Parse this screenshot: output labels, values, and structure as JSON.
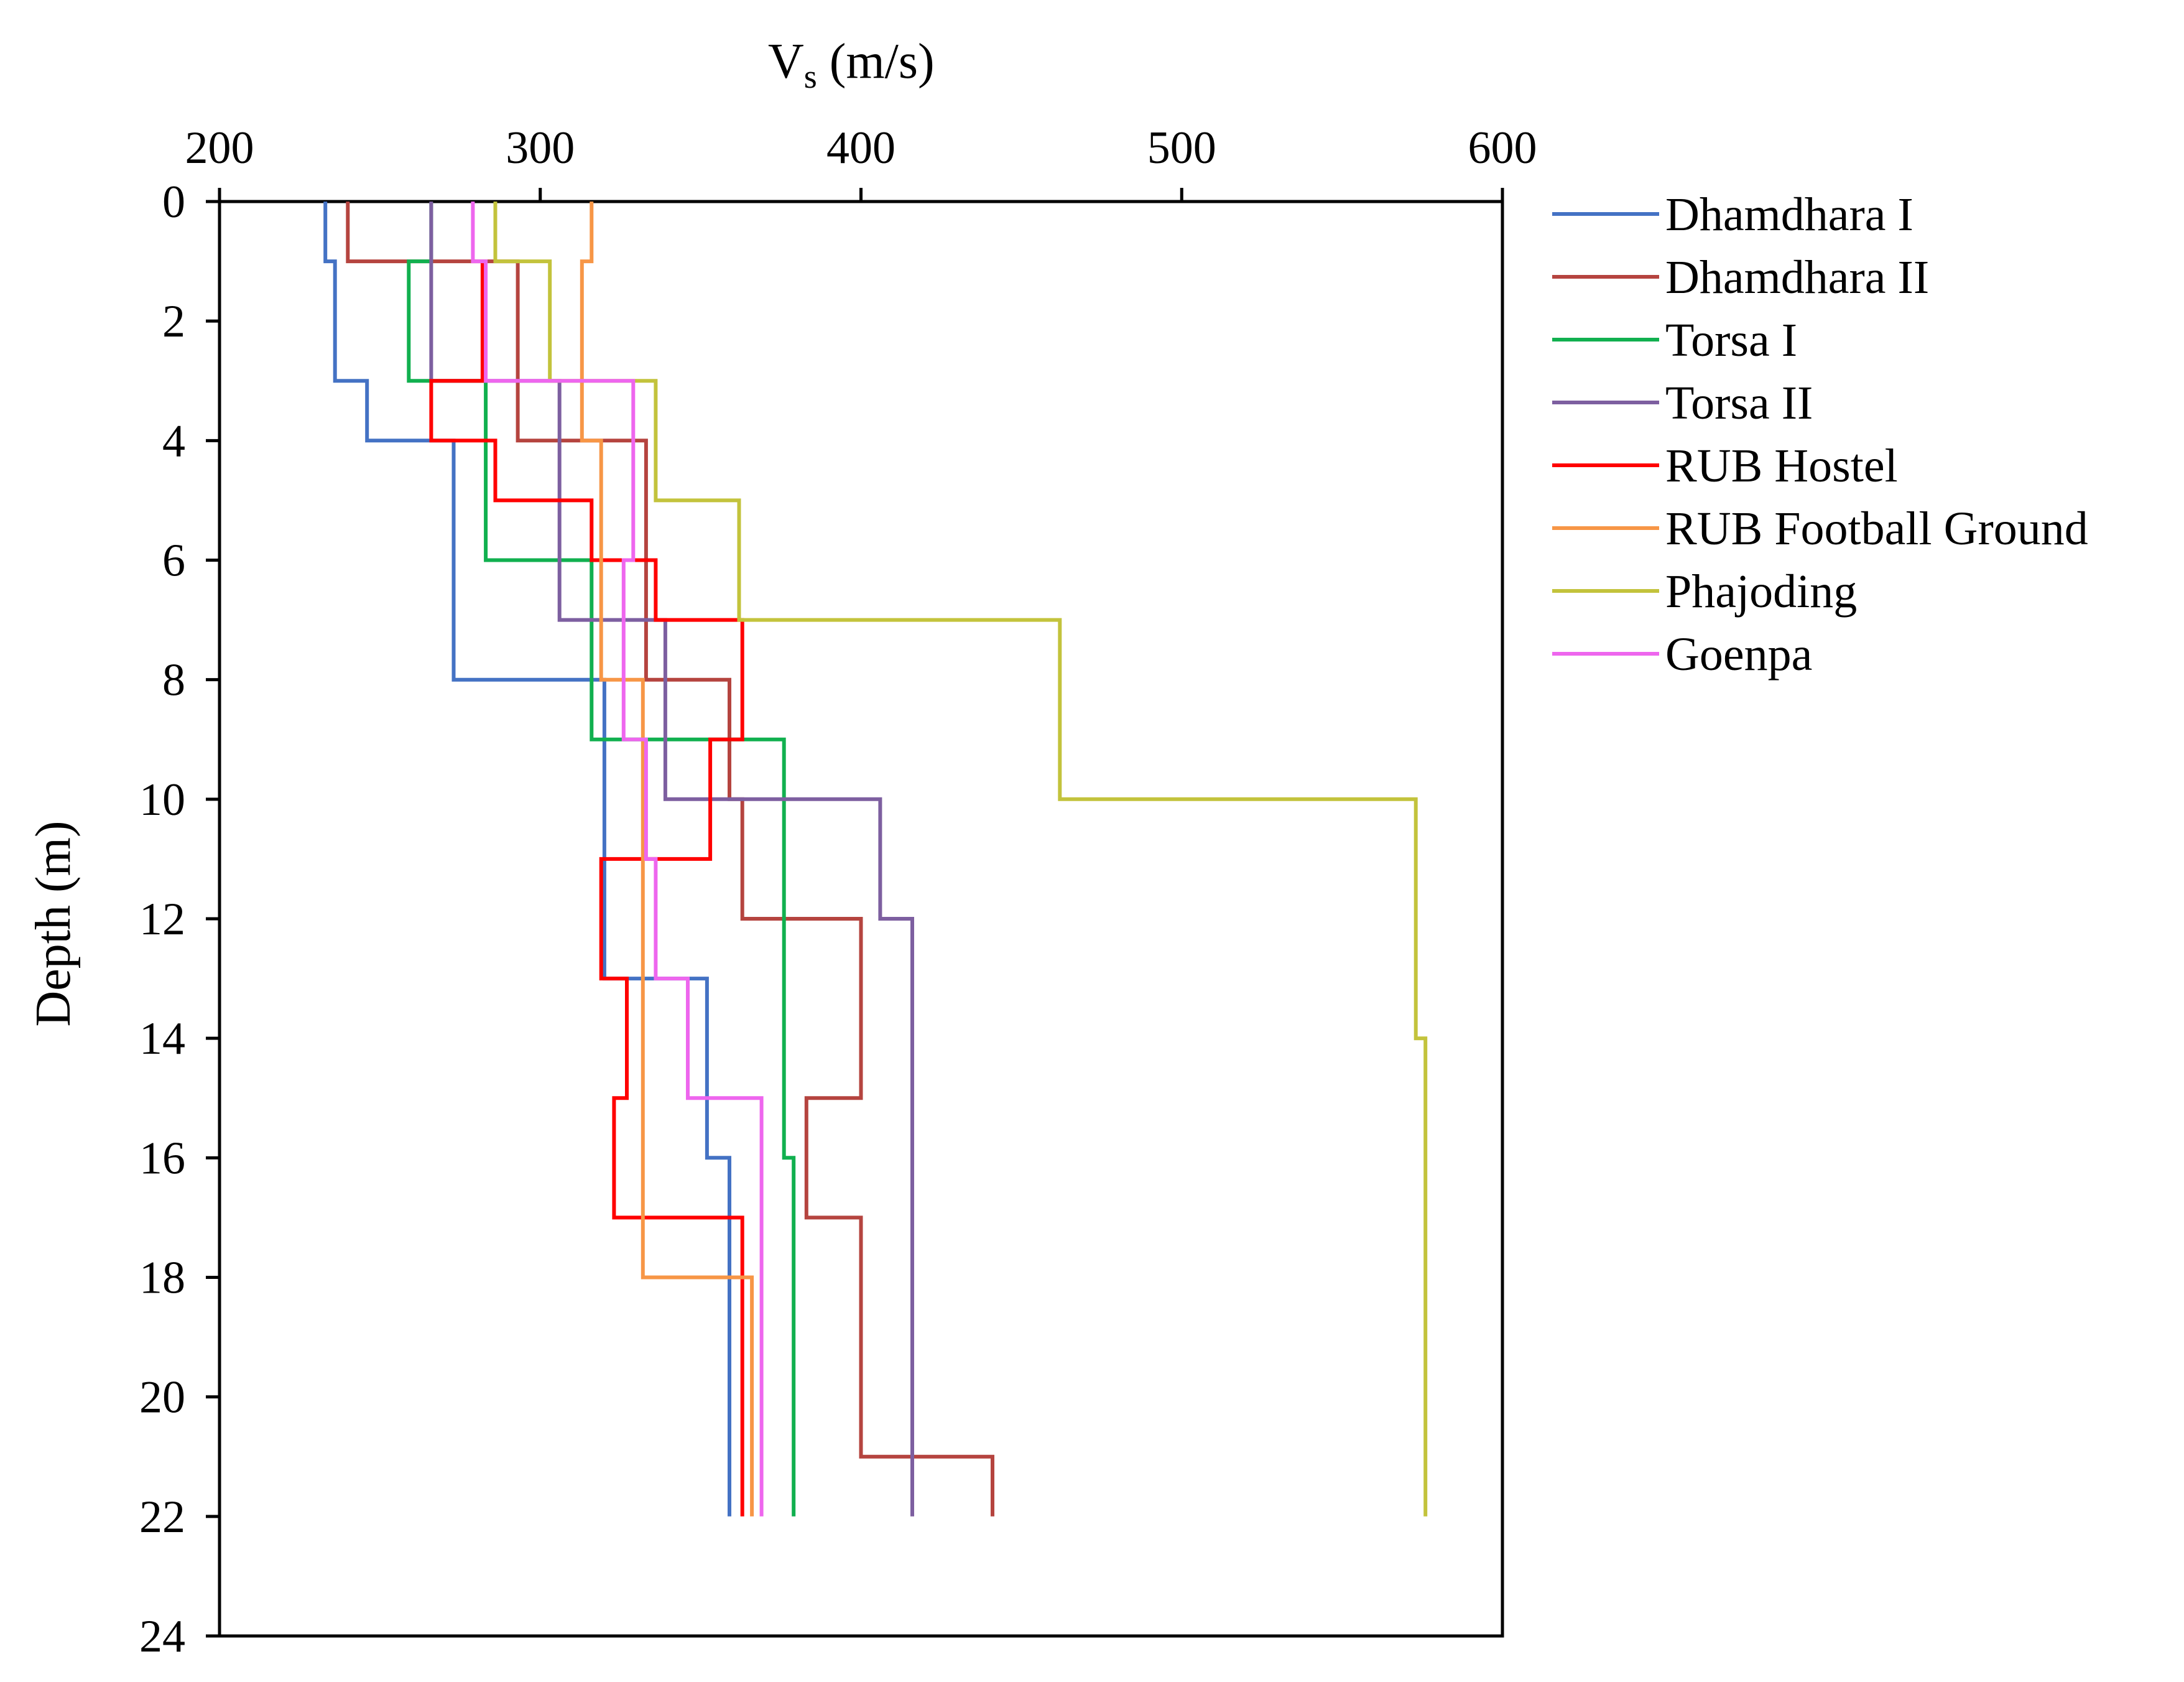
{
  "chart_data": {
    "type": "line",
    "xlabel_main": "V",
    "xlabel_sub": "s",
    "xlabel_rest": " (m/s)",
    "ylabel": "Depth (m)",
    "xlim": [
      200,
      600
    ],
    "ylim": [
      0,
      24
    ],
    "y_inverted": true,
    "x_axis_position": "top",
    "grid": false,
    "legend_position": "right",
    "x_ticks": [
      "200",
      "300",
      "400",
      "500",
      "600"
    ],
    "y_ticks": [
      "0",
      "2",
      "4",
      "6",
      "8",
      "10",
      "12",
      "14",
      "16",
      "18",
      "20",
      "22",
      "24"
    ],
    "series": [
      {
        "name": "Dhamdhara I",
        "color": "#4472c4",
        "points": [
          [
            233,
            0
          ],
          [
            233,
            1
          ],
          [
            236,
            1
          ],
          [
            236,
            3
          ],
          [
            246,
            3
          ],
          [
            246,
            4
          ],
          [
            273,
            4
          ],
          [
            273,
            8
          ],
          [
            320,
            8
          ],
          [
            320,
            13
          ],
          [
            352,
            13
          ],
          [
            352,
            16
          ],
          [
            359,
            16
          ],
          [
            359,
            22
          ]
        ]
      },
      {
        "name": "Dhamdhara II",
        "color": "#b5443f",
        "points": [
          [
            240,
            0
          ],
          [
            240,
            1
          ],
          [
            293,
            1
          ],
          [
            293,
            4
          ],
          [
            333,
            4
          ],
          [
            333,
            8
          ],
          [
            359,
            8
          ],
          [
            359,
            10
          ],
          [
            363,
            10
          ],
          [
            363,
            12
          ],
          [
            400,
            12
          ],
          [
            400,
            15
          ],
          [
            383,
            15
          ],
          [
            383,
            17
          ],
          [
            400,
            17
          ],
          [
            400,
            21
          ],
          [
            441,
            21
          ],
          [
            441,
            22
          ]
        ]
      },
      {
        "name": "Torsa I",
        "color": "#11b04f",
        "points": [
          [
            266,
            0
          ],
          [
            266,
            1
          ],
          [
            259,
            1
          ],
          [
            259,
            3
          ],
          [
            283,
            3
          ],
          [
            283,
            6
          ],
          [
            316,
            6
          ],
          [
            316,
            9
          ],
          [
            376,
            9
          ],
          [
            376,
            16
          ],
          [
            379,
            16
          ],
          [
            379,
            22
          ]
        ]
      },
      {
        "name": "Torsa II",
        "color": "#7d5fa0",
        "points": [
          [
            266,
            0
          ],
          [
            266,
            3
          ],
          [
            306,
            3
          ],
          [
            306,
            7
          ],
          [
            339,
            7
          ],
          [
            339,
            10
          ],
          [
            406,
            10
          ],
          [
            406,
            12
          ],
          [
            416,
            12
          ],
          [
            416,
            22
          ]
        ]
      },
      {
        "name": "RUB Hostel",
        "color": "#ff0000",
        "points": [
          [
            282,
            1
          ],
          [
            282,
            3
          ],
          [
            266,
            3
          ],
          [
            266,
            4
          ],
          [
            286,
            4
          ],
          [
            286,
            5
          ],
          [
            316,
            5
          ],
          [
            316,
            6
          ],
          [
            336,
            6
          ],
          [
            336,
            7
          ],
          [
            363,
            7
          ],
          [
            363,
            9
          ],
          [
            353,
            9
          ],
          [
            353,
            11
          ],
          [
            319,
            11
          ],
          [
            319,
            13
          ],
          [
            327,
            13
          ],
          [
            327,
            15
          ],
          [
            323,
            15
          ],
          [
            323,
            17
          ],
          [
            363,
            17
          ],
          [
            363,
            22
          ]
        ]
      },
      {
        "name": "RUB Football Ground",
        "color": "#f79646",
        "points": [
          [
            316,
            0
          ],
          [
            316,
            1
          ],
          [
            313,
            1
          ],
          [
            313,
            4
          ],
          [
            319,
            4
          ],
          [
            319,
            8
          ],
          [
            332,
            8
          ],
          [
            332,
            18
          ],
          [
            366,
            18
          ],
          [
            366,
            22
          ]
        ]
      },
      {
        "name": "Phajoding",
        "color": "#c3c33c",
        "points": [
          [
            286,
            0
          ],
          [
            286,
            1
          ],
          [
            303,
            1
          ],
          [
            303,
            3
          ],
          [
            336,
            3
          ],
          [
            336,
            5
          ],
          [
            362,
            5
          ],
          [
            362,
            7
          ],
          [
            462,
            7
          ],
          [
            462,
            10
          ],
          [
            573,
            10
          ],
          [
            573,
            14
          ],
          [
            576,
            14
          ],
          [
            576,
            22
          ]
        ]
      },
      {
        "name": "Goenpa",
        "color": "#ee66ee",
        "points": [
          [
            279,
            0
          ],
          [
            279,
            1
          ],
          [
            283,
            1
          ],
          [
            283,
            3
          ],
          [
            329,
            3
          ],
          [
            329,
            6
          ],
          [
            326,
            6
          ],
          [
            326,
            9
          ],
          [
            333,
            9
          ],
          [
            333,
            11
          ],
          [
            336,
            11
          ],
          [
            336,
            13
          ],
          [
            346,
            13
          ],
          [
            346,
            15
          ],
          [
            369,
            15
          ],
          [
            369,
            22
          ]
        ]
      }
    ]
  }
}
